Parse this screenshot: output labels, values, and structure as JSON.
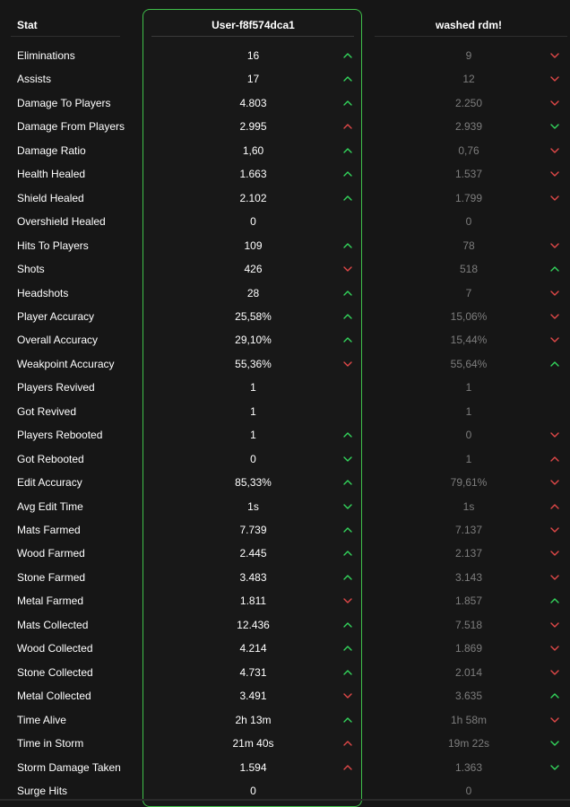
{
  "header": {
    "stat_label": "Stat",
    "player1_name": "User-f8f574dca1",
    "player2_name": "washed rdm!"
  },
  "colors": {
    "p1_border": "#3fbf4a",
    "up": "#33d65c",
    "down": "#e04848",
    "p2_value": "#7d7d7d"
  },
  "rows": [
    {
      "stat": "Eliminations",
      "v1": "16",
      "a1": "up",
      "v2": "9",
      "a2": "down"
    },
    {
      "stat": "Assists",
      "v1": "17",
      "a1": "up",
      "v2": "12",
      "a2": "down"
    },
    {
      "stat": "Damage To Players",
      "v1": "4.803",
      "a1": "up",
      "v2": "2.250",
      "a2": "down"
    },
    {
      "stat": "Damage From Players",
      "v1": "2.995",
      "a1": "up-red",
      "v2": "2.939",
      "a2": "down-green"
    },
    {
      "stat": "Damage Ratio",
      "v1": "1,60",
      "a1": "up",
      "v2": "0,76",
      "a2": "down"
    },
    {
      "stat": "Health Healed",
      "v1": "1.663",
      "a1": "up",
      "v2": "1.537",
      "a2": "down"
    },
    {
      "stat": "Shield Healed",
      "v1": "2.102",
      "a1": "up",
      "v2": "1.799",
      "a2": "down"
    },
    {
      "stat": "Overshield Healed",
      "v1": "0",
      "a1": "",
      "v2": "0",
      "a2": ""
    },
    {
      "stat": "Hits To Players",
      "v1": "109",
      "a1": "up",
      "v2": "78",
      "a2": "down"
    },
    {
      "stat": "Shots",
      "v1": "426",
      "a1": "down",
      "v2": "518",
      "a2": "up"
    },
    {
      "stat": "Headshots",
      "v1": "28",
      "a1": "up",
      "v2": "7",
      "a2": "down"
    },
    {
      "stat": "Player Accuracy",
      "v1": "25,58%",
      "a1": "up",
      "v2": "15,06%",
      "a2": "down"
    },
    {
      "stat": "Overall Accuracy",
      "v1": "29,10%",
      "a1": "up",
      "v2": "15,44%",
      "a2": "down"
    },
    {
      "stat": "Weakpoint Accuracy",
      "v1": "55,36%",
      "a1": "down",
      "v2": "55,64%",
      "a2": "up"
    },
    {
      "stat": "Players Revived",
      "v1": "1",
      "a1": "",
      "v2": "1",
      "a2": ""
    },
    {
      "stat": "Got Revived",
      "v1": "1",
      "a1": "",
      "v2": "1",
      "a2": ""
    },
    {
      "stat": "Players Rebooted",
      "v1": "1",
      "a1": "up",
      "v2": "0",
      "a2": "down"
    },
    {
      "stat": "Got Rebooted",
      "v1": "0",
      "a1": "down-green",
      "v2": "1",
      "a2": "up-red"
    },
    {
      "stat": "Edit Accuracy",
      "v1": "85,33%",
      "a1": "up",
      "v2": "79,61%",
      "a2": "down"
    },
    {
      "stat": "Avg Edit Time",
      "v1": "1s",
      "a1": "down-green",
      "v2": "1s",
      "a2": "up-red"
    },
    {
      "stat": "Mats Farmed",
      "v1": "7.739",
      "a1": "up",
      "v2": "7.137",
      "a2": "down"
    },
    {
      "stat": "Wood Farmed",
      "v1": "2.445",
      "a1": "up",
      "v2": "2.137",
      "a2": "down"
    },
    {
      "stat": "Stone Farmed",
      "v1": "3.483",
      "a1": "up",
      "v2": "3.143",
      "a2": "down"
    },
    {
      "stat": "Metal Farmed",
      "v1": "1.811",
      "a1": "down",
      "v2": "1.857",
      "a2": "up"
    },
    {
      "stat": "Mats Collected",
      "v1": "12.436",
      "a1": "up",
      "v2": "7.518",
      "a2": "down"
    },
    {
      "stat": "Wood Collected",
      "v1": "4.214",
      "a1": "up",
      "v2": "1.869",
      "a2": "down"
    },
    {
      "stat": "Stone Collected",
      "v1": "4.731",
      "a1": "up",
      "v2": "2.014",
      "a2": "down"
    },
    {
      "stat": "Metal Collected",
      "v1": "3.491",
      "a1": "down",
      "v2": "3.635",
      "a2": "up"
    },
    {
      "stat": "Time Alive",
      "v1": "2h 13m",
      "a1": "up",
      "v2": "1h 58m",
      "a2": "down"
    },
    {
      "stat": "Time in Storm",
      "v1": "21m 40s",
      "a1": "up-red",
      "v2": "19m 22s",
      "a2": "down-green"
    },
    {
      "stat": "Storm Damage Taken",
      "v1": "1.594",
      "a1": "up-red",
      "v2": "1.363",
      "a2": "down-green"
    },
    {
      "stat": "Surge Hits",
      "v1": "0",
      "a1": "",
      "v2": "0",
      "a2": ""
    }
  ]
}
